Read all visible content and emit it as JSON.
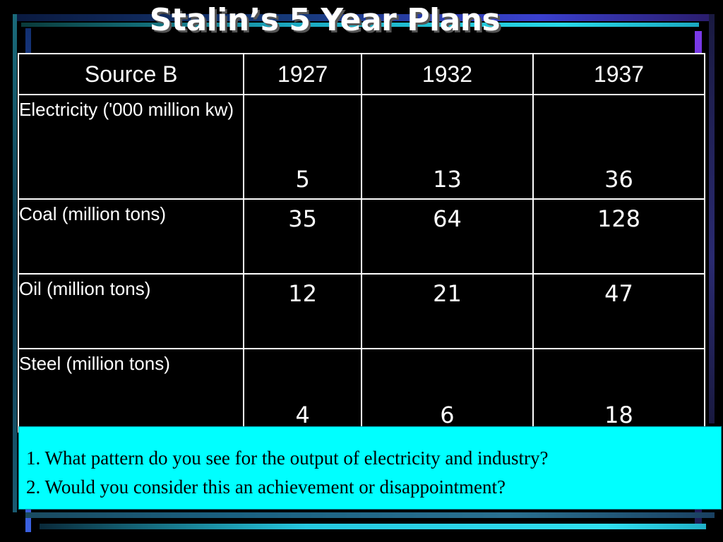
{
  "slide": {
    "title": "Stalin’s 5 Year Plans"
  },
  "colors": {
    "background": "#000000",
    "header_text": "#1aa6c8",
    "question_box": "#00ffff"
  },
  "table": {
    "headers": [
      "Source B",
      "1927",
      "1932",
      "1937"
    ],
    "rows": [
      {
        "label": "Electricity ('000 million kw)",
        "values": [
          "5",
          "13",
          "36"
        ]
      },
      {
        "label": "Coal (million tons)",
        "values": [
          "35",
          "64",
          "128"
        ]
      },
      {
        "label": "Oil (million tons)",
        "values": [
          "12",
          "21",
          "47"
        ]
      },
      {
        "label": "Steel (million tons)",
        "values": [
          "4",
          "6",
          "18"
        ]
      }
    ]
  },
  "questions": [
    "1. What pattern do you see for the output of electricity and industry?",
    "2. Would you consider this an achievement or disappointment?"
  ]
}
